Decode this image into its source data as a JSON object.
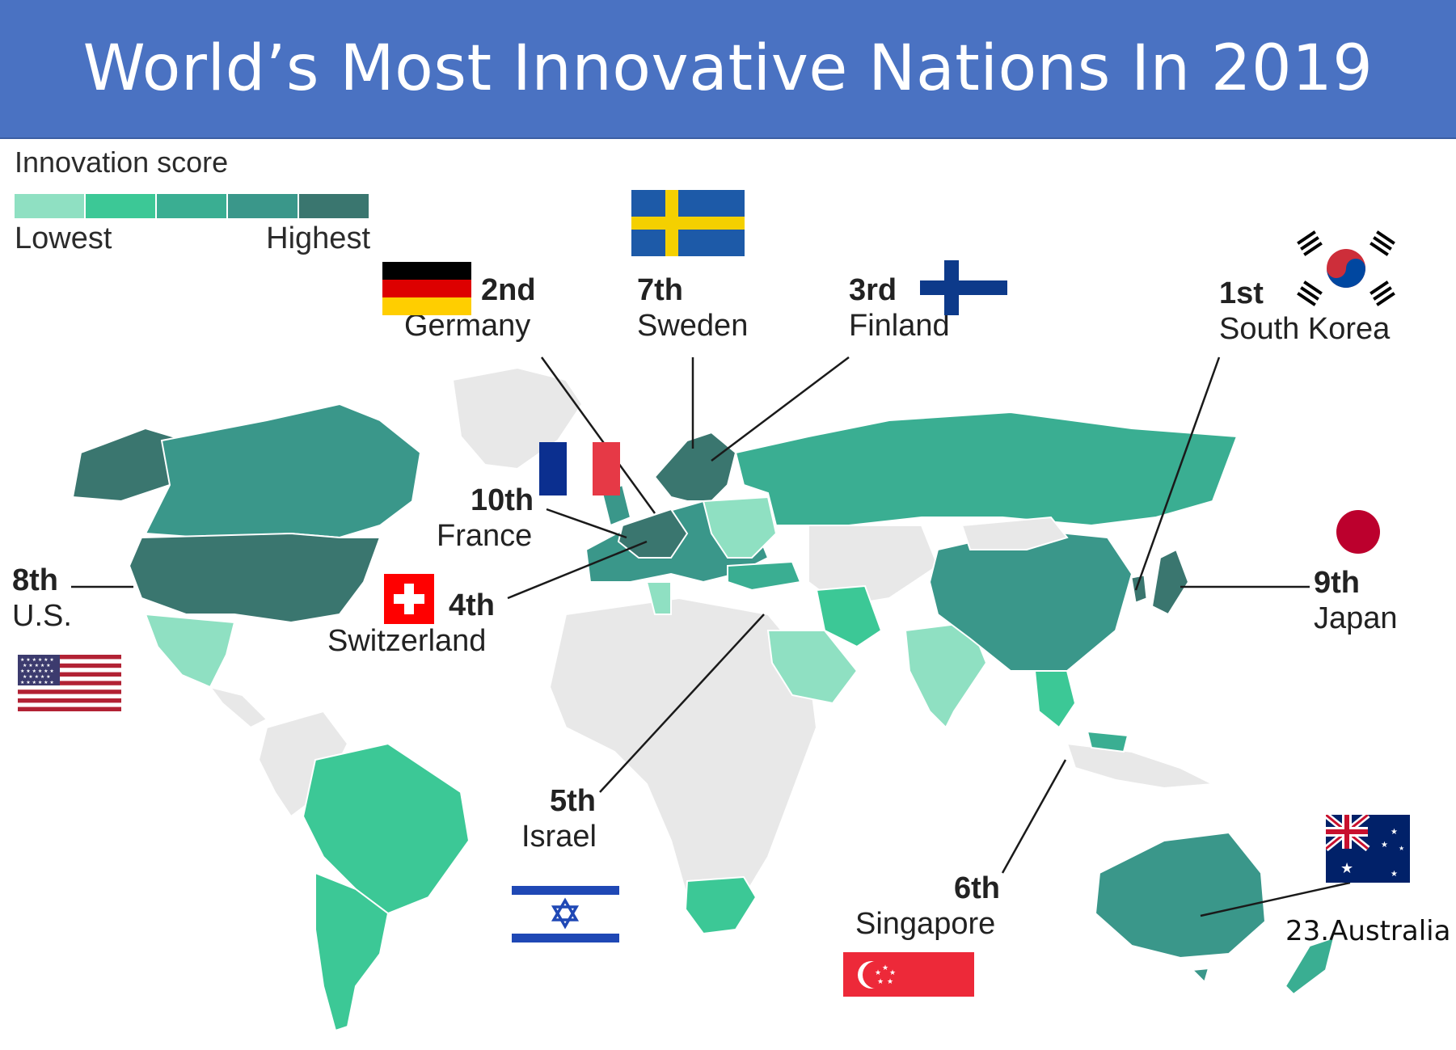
{
  "title": "World’s Most Innovative Nations In 2019",
  "legend": {
    "title": "Innovation score",
    "low_label": "Lowest",
    "high_label": "Highest",
    "scale_colors": [
      "#8fe0c2",
      "#3cc896",
      "#3aae92",
      "#3a978a",
      "#3a766f"
    ]
  },
  "colors": {
    "no_data": "#e8e8e8",
    "leader_line": "#1a1a1a",
    "title_bg": "#4a72c2"
  },
  "rankings": [
    {
      "rank": "1st",
      "country": "South Korea",
      "flag": "south-korea"
    },
    {
      "rank": "2nd",
      "country": "Germany",
      "flag": "germany"
    },
    {
      "rank": "3rd",
      "country": "Finland",
      "flag": "finland"
    },
    {
      "rank": "4th",
      "country": "Switzerland",
      "flag": "switzerland"
    },
    {
      "rank": "5th",
      "country": "Israel",
      "flag": "israel"
    },
    {
      "rank": "6th",
      "country": "Singapore",
      "flag": "singapore"
    },
    {
      "rank": "7th",
      "country": "Sweden",
      "flag": "sweden"
    },
    {
      "rank": "8th",
      "country": "U.S.",
      "flag": "usa"
    },
    {
      "rank": "9th",
      "country": "Japan",
      "flag": "japan"
    },
    {
      "rank": "10th",
      "country": "France",
      "flag": "france"
    }
  ],
  "extra_label": "23.Australia"
}
